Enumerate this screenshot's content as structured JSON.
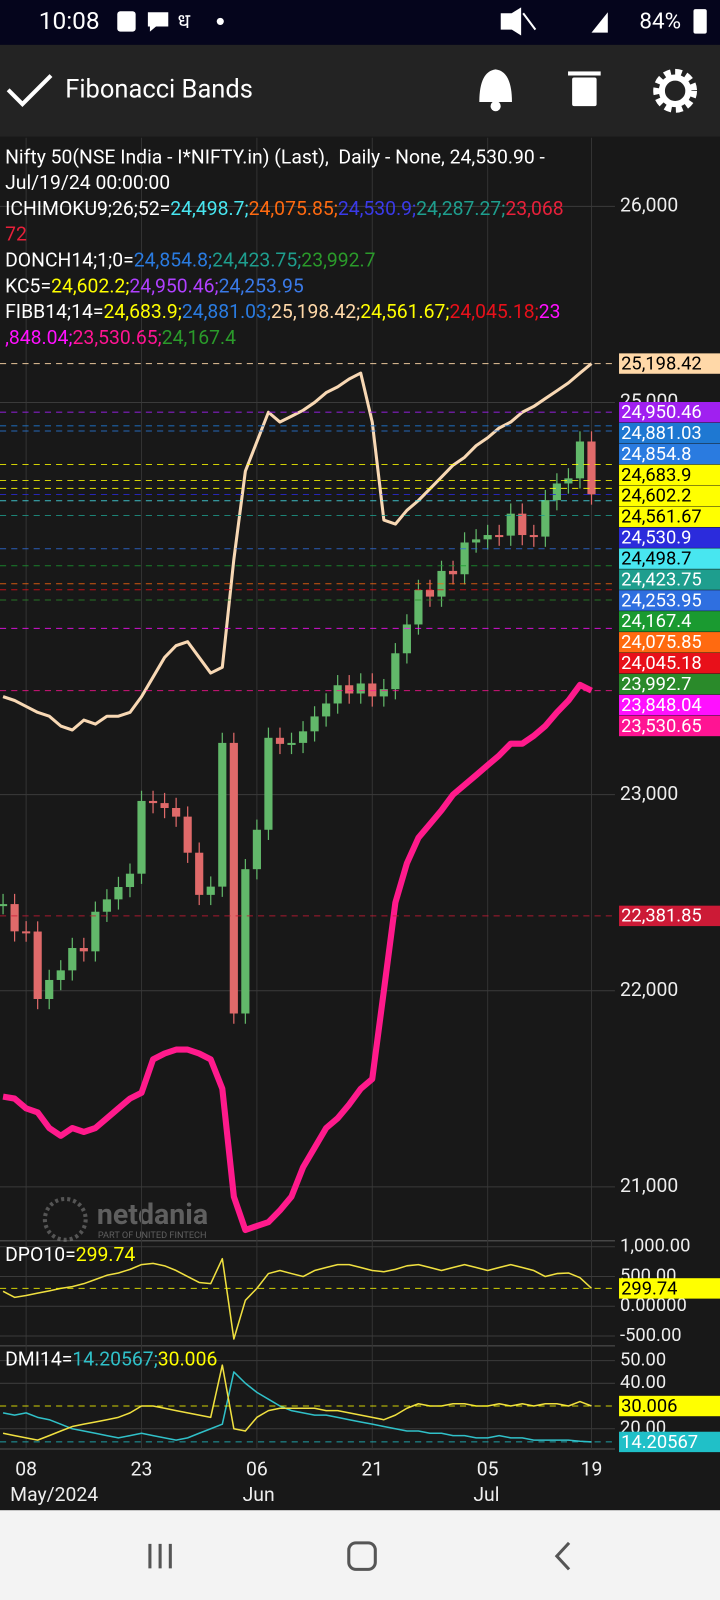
{
  "status_bar": {
    "time": "10:08",
    "battery": "84%"
  },
  "toolbar": {
    "title": "Fibonacci Bands"
  },
  "watermark": {
    "brand": "netdania",
    "tagline": "PART OF UNITED FINTECH"
  },
  "chart_data": [
    {
      "type": "candlestick",
      "categories": [
        null,
        null,
        "08",
        null,
        null,
        null,
        null,
        null,
        null,
        null,
        null,
        null,
        "23",
        null,
        null,
        null,
        null,
        null,
        null,
        null,
        null,
        null,
        "06",
        null,
        null,
        null,
        null,
        null,
        null,
        null,
        null,
        null,
        "21",
        null,
        null,
        null,
        null,
        null,
        null,
        null,
        null,
        null,
        "05",
        null,
        null,
        null,
        null,
        null,
        null,
        null,
        null,
        "19"
      ],
      "months": [
        "May/2024",
        "Jun",
        "Jul"
      ],
      "ylim": [
        20730,
        26350
      ],
      "yticks": [
        {
          "value": 21000,
          "label": "21,000"
        },
        {
          "value": 22000,
          "label": "22,000"
        },
        {
          "value": 23000,
          "label": "23,000"
        },
        {
          "value": 25000,
          "label": "25,000"
        },
        {
          "value": 26000,
          "label": "26,000"
        }
      ],
      "grid": true,
      "series": [
        {
          "style": "candle",
          "up_color": "#62b86a",
          "down_color": "#e06a6a",
          "values": [
            22442,
            22303,
            22302,
            21958,
            22055,
            22104,
            22218,
            22201,
            22403,
            22466,
            22529,
            22597,
            22968,
            22957,
            22932,
            22888,
            22704,
            22489,
            22531,
            23264,
            21884,
            22620,
            22821,
            23290,
            23259,
            23264,
            23323,
            23399,
            23465,
            23558,
            23516,
            23567,
            23501,
            23538,
            23721,
            23868,
            24044,
            24010,
            24141,
            24124,
            24286,
            24302,
            24324,
            24321,
            24433,
            24324,
            24316,
            24502,
            24587,
            24613,
            24801,
            24531
          ]
        },
        {
          "style": "line",
          "color": "#f8d8b4",
          "width": 3,
          "values": [
            23500,
            23480,
            23450,
            23420,
            23400,
            23350,
            23330,
            23380,
            23360,
            23400,
            23400,
            23420,
            23500,
            23600,
            23700,
            23760,
            23780,
            23700,
            23620,
            23650,
            24200,
            24650,
            24800,
            24950,
            24900,
            24930,
            24960,
            25000,
            25050,
            25080,
            25120,
            25150,
            24900,
            24400,
            24380,
            24450,
            24500,
            24560,
            24620,
            24680,
            24720,
            24780,
            24820,
            24870,
            24900,
            24950,
            24980,
            25020,
            25060,
            25100,
            25150,
            25198.42
          ]
        },
        {
          "style": "line",
          "color": "#ff1a8c",
          "width": 6,
          "values": [
            21460,
            21450,
            21400,
            21380,
            21300,
            21260,
            21300,
            21280,
            21300,
            21350,
            21400,
            21450,
            21480,
            21650,
            21680,
            21700,
            21700,
            21680,
            21650,
            21500,
            20950,
            20780,
            20800,
            20820,
            20880,
            20950,
            21100,
            21200,
            21300,
            21350,
            21420,
            21500,
            21550,
            22000,
            22450,
            22650,
            22780,
            22850,
            22920,
            23000,
            23050,
            23100,
            23150,
            23200,
            23260,
            23260,
            23300,
            23350,
            23420,
            23480,
            23560,
            23530.65
          ]
        }
      ],
      "price_labels": [
        {
          "value": 25198.42,
          "label": "25,198.42",
          "color": "#ffd8a8",
          "text_color": "#000000"
        },
        {
          "value": 24950.46,
          "label": "24,950.46",
          "color": "#a020f0",
          "text_color": "#ffffff"
        },
        {
          "value": 24881.03,
          "label": "24,881.03",
          "color": "#1e78d2",
          "text_color": "#ffffff"
        },
        {
          "value": 24854.8,
          "label": "24,854.8",
          "color": "#2a7be0",
          "text_color": "#ffffff"
        },
        {
          "value": 24683.9,
          "label": "24,683.9",
          "color": "#ffff00",
          "text_color": "#000000"
        },
        {
          "value": 24602.2,
          "label": "24,602.2",
          "color": "#ffff00",
          "text_color": "#000000"
        },
        {
          "value": 24561.67,
          "label": "24,561.67",
          "color": "#ffff00",
          "text_color": "#000000"
        },
        {
          "value": 24530.9,
          "label": "24,530.9",
          "color": "#2b2bdc",
          "text_color": "#ffffff"
        },
        {
          "value": 24498.7,
          "label": "24,498.7",
          "color": "#48e6f0",
          "text_color": "#000000"
        },
        {
          "value": 24423.75,
          "label": "24,423.75",
          "color": "#1e9e8e",
          "text_color": "#ffffff"
        },
        {
          "value": 24253.95,
          "label": "24,253.95",
          "color": "#2f6fe0",
          "text_color": "#ffffff"
        },
        {
          "value": 24167.4,
          "label": "24,167.4",
          "color": "#1a9a30",
          "text_color": "#ffffff"
        },
        {
          "value": 24075.85,
          "label": "24,075.85",
          "color": "#ff6a10",
          "text_color": "#ffffff"
        },
        {
          "value": 24045.18,
          "label": "24,045.18",
          "color": "#e8101a",
          "text_color": "#ffffff"
        },
        {
          "value": 23992.7,
          "label": "23,992.7",
          "color": "#2a8a2a",
          "text_color": "#ffffff"
        },
        {
          "value": 23848.04,
          "label": "23,848.04",
          "color": "#ff10ff",
          "text_color": "#ffffff"
        },
        {
          "value": 23530.65,
          "label": "23,530.65",
          "color": "#ff1493",
          "text_color": "#ffffff"
        },
        {
          "value": 22381.85,
          "label": "22,381.85",
          "color": "#cc1a36",
          "text_color": "#ffffff"
        }
      ],
      "legend_lines": [
        [
          {
            "text": "Nifty 50(NSE India - I*NIFTY.in) (Last),  Daily - None, 24,530.90 -",
            "color": "#ffffff"
          }
        ],
        [
          {
            "text": "Jul/19/24 00:00:00",
            "color": "#ffffff"
          }
        ],
        [
          {
            "text": "ICHIMOKU9;26;52=",
            "color": "#ffffff"
          },
          {
            "text": "24,498.7;",
            "color": "#48e6f0"
          },
          {
            "text": "24,075.85;",
            "color": "#ff6a10"
          },
          {
            "text": "24,530.9;",
            "color": "#3a3ae8"
          },
          {
            "text": "24,287.27;",
            "color": "#1e9e8e"
          },
          {
            "text": "23,068",
            "color": "#e8203a"
          }
        ],
        [
          {
            "text": "72",
            "color": "#e8203a"
          }
        ],
        [
          {
            "text": "DONCH14;1;0=",
            "color": "#ffffff"
          },
          {
            "text": "24,854.8;",
            "color": "#2a7be0"
          },
          {
            "text": "24,423.75;",
            "color": "#1e9e8e"
          },
          {
            "text": "23,992.7",
            "color": "#2a9a2a"
          }
        ],
        [
          {
            "text": "KC5=",
            "color": "#ffffff"
          },
          {
            "text": "24,602.2;",
            "color": "#ffff00"
          },
          {
            "text": "24,950.46;",
            "color": "#b040ff"
          },
          {
            "text": "24,253.95",
            "color": "#3a7ae8"
          }
        ],
        [
          {
            "text": "FIBB14;14=",
            "color": "#ffffff"
          },
          {
            "text": "24,683.9;",
            "color": "#ffff00"
          },
          {
            "text": "24,881.03;",
            "color": "#2a7be0"
          },
          {
            "text": "25,198.42;",
            "color": "#ffd8a8"
          },
          {
            "text": "24,561.67;",
            "color": "#ffff00"
          },
          {
            "text": "24,045.18;",
            "color": "#e8101a"
          },
          {
            "text": "23",
            "color": "#ff10ff"
          }
        ],
        [
          {
            "text": ",848.04;",
            "color": "#ff10ff"
          },
          {
            "text": "23,530.65;",
            "color": "#ff1493"
          },
          {
            "text": "24,167.4",
            "color": "#2a9a2a"
          }
        ]
      ]
    },
    {
      "type": "line",
      "ylim": [
        -650,
        1100
      ],
      "yticks": [
        {
          "value": -500,
          "label": "-500.00"
        },
        {
          "value": 0,
          "label": "0.00000"
        },
        {
          "value": 500,
          "label": "500.00"
        },
        {
          "value": 1000,
          "label": "1,000.00"
        }
      ],
      "grid": true,
      "series": [
        {
          "style": "line",
          "color": "#f0e040",
          "width": 1.5,
          "values": [
            250,
            150,
            180,
            220,
            260,
            300,
            330,
            380,
            450,
            520,
            560,
            620,
            700,
            720,
            680,
            600,
            500,
            400,
            380,
            800,
            -550,
            100,
            300,
            550,
            600,
            550,
            500,
            600,
            650,
            700,
            700,
            650,
            600,
            580,
            620,
            680,
            700,
            650,
            600,
            650,
            700,
            650,
            600,
            650,
            700,
            650,
            600,
            500,
            550,
            560,
            480,
            299.74
          ]
        }
      ],
      "price_labels": [
        {
          "value": 299.74,
          "label": "299.74",
          "color": "#ffff00",
          "text_color": "#000000"
        }
      ],
      "legend_lines": [
        [
          {
            "text": "DPO10=",
            "color": "#ffffff"
          },
          {
            "text": "299.74",
            "color": "#ffff00"
          }
        ]
      ]
    },
    {
      "type": "line",
      "ylim": [
        12,
        56
      ],
      "yticks": [
        {
          "value": 20,
          "label": "20.00"
        },
        {
          "value": 40,
          "label": "40.00"
        },
        {
          "value": 50,
          "label": "50.00"
        }
      ],
      "grid": true,
      "series": [
        {
          "style": "line",
          "color": "#30c0c8",
          "width": 1.5,
          "values": [
            27,
            26,
            27,
            25,
            24,
            22,
            20,
            19,
            18,
            17,
            16,
            17,
            18,
            17,
            16,
            15,
            16,
            18,
            20,
            22,
            45,
            40,
            36,
            33,
            30,
            28,
            27,
            26,
            26,
            25,
            24,
            23,
            22,
            21,
            20,
            19,
            19,
            18,
            18,
            17,
            17,
            16,
            16,
            17,
            16,
            16,
            15,
            15,
            15,
            15,
            14.5,
            14.20567
          ]
        },
        {
          "style": "line",
          "color": "#f0e040",
          "width": 1.5,
          "values": [
            18,
            17,
            16,
            15,
            17,
            19,
            21,
            22,
            23,
            24,
            25,
            27,
            30,
            30,
            29,
            28,
            27,
            26,
            25,
            48,
            20,
            19,
            25,
            28,
            29,
            29,
            29,
            29,
            28,
            28,
            27,
            26,
            25,
            24,
            26,
            29,
            31,
            30,
            30,
            31,
            31,
            30,
            30,
            31,
            30,
            31,
            30,
            31,
            31,
            30,
            32,
            30.006
          ]
        }
      ],
      "price_labels": [
        {
          "value": 30.006,
          "label": "30.006",
          "color": "#ffff00",
          "text_color": "#000000"
        },
        {
          "value": 14.20567,
          "label": "14.20567",
          "color": "#20c0c8",
          "text_color": "#ffffff"
        }
      ],
      "legend_lines": [
        [
          {
            "text": "DMI14=",
            "color": "#ffffff"
          },
          {
            "text": "14.20567;",
            "color": "#30c0c8"
          },
          {
            "text": "30.006",
            "color": "#ffff00"
          }
        ]
      ]
    }
  ]
}
